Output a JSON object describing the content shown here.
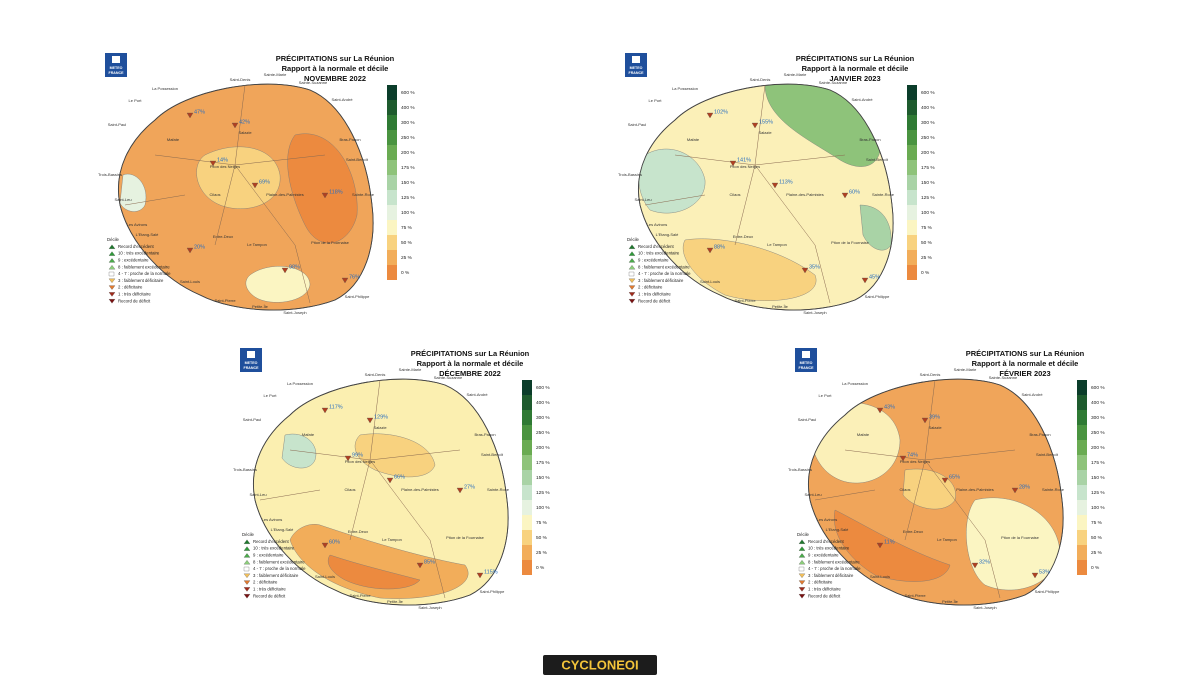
{
  "colorbar": {
    "labels": [
      "600 %",
      "400 %",
      "300 %",
      "250 %",
      "200 %",
      "175 %",
      "150 %",
      "125 %",
      "100 %",
      "75 %",
      "50 %",
      "25 %",
      "0 %"
    ],
    "colors": [
      "#0b3d2a",
      "#1e5b2e",
      "#2f7a34",
      "#4a9440",
      "#6aab52",
      "#8ec37a",
      "#a9d3a6",
      "#c7e4cc",
      "#e6f2e0",
      "#fbf5c2",
      "#f8d27f",
      "#f2ad5a",
      "#ec8a3f"
    ]
  },
  "logo": [
    "METEO",
    "FRANCE"
  ],
  "legend": [
    "Décile",
    "Record d'excédent",
    "10 : très excédentaire",
    "9 : excédentaire",
    "8 : faiblement excédentaire",
    "4 - 7 : proche de la normale",
    "3 : faiblement déficitaire",
    "2 : déficitaire",
    "1 : très déficitaire",
    "Record de déficit"
  ],
  "places": [
    "Saint-Denis",
    "Sainte-Marie",
    "Sainte-Suzanne",
    "Saint-André",
    "Bras-Panon",
    "Saint-Benoît",
    "Sainte-Rose",
    "Saint-Paul",
    "La Possession",
    "Le Port",
    "Trois-Bassins",
    "Saint-Leu",
    "Les Avirons",
    "L'Etang-Salé",
    "Saint-Louis",
    "Saint-Pierre",
    "Petite-Île",
    "Saint-Joseph",
    "Saint-Philippe",
    "Le Tampon",
    "Plaine-des-Palmistes",
    "Salazie",
    "Cilaos",
    "Piton des Neiges",
    "Piton de la Fournaise",
    "Entre-Deux",
    "Mafate"
  ],
  "panels": [
    {
      "title": [
        "PRÉCIPITATIONS sur La Réunion",
        "Rapport à la normale et décile",
        "NOVEMBRE 2022"
      ],
      "base_color": "#f0a55a",
      "patch_colors": [
        "#f8d27f",
        "#fbf5c2",
        "#ec8a3f",
        "#e6f2e0"
      ],
      "stations": [
        "47%",
        "42%",
        "14%",
        "69%",
        "118%",
        "20%",
        "98%",
        "76%"
      ]
    },
    {
      "title": [
        "PRÉCIPITATIONS sur La Réunion",
        "Rapport à la normale et décile",
        "JANVIER 2023"
      ],
      "base_color": "#fbf0b8",
      "patch_colors": [
        "#8ec37a",
        "#c7e4cc",
        "#f8d27f",
        "#a9d3a6"
      ],
      "stations": [
        "102%",
        "155%",
        "141%",
        "113%",
        "60%",
        "88%",
        "35%",
        "45%"
      ]
    },
    {
      "title": [
        "PRÉCIPITATIONS sur La Réunion",
        "Rapport à la normale et décile",
        "DÉCEMBRE 2022"
      ],
      "base_color": "#fbefb0",
      "patch_colors": [
        "#f2ad5a",
        "#c7e4cc",
        "#f8d27f",
        "#ec8a3f"
      ],
      "stations": [
        "117%",
        "129%",
        "99%",
        "66%",
        "27%",
        "60%",
        "85%",
        "115%"
      ]
    },
    {
      "title": [
        "PRÉCIPITATIONS sur La Réunion",
        "Rapport à la normale et décile",
        "FÉVRIER 2023"
      ],
      "base_color": "#f0a55a",
      "patch_colors": [
        "#fbf0b8",
        "#fbf5c2",
        "#ec8a3f",
        "#f8d27f"
      ],
      "stations": [
        "43%",
        "39%",
        "74%",
        "65%",
        "28%",
        "11%",
        "32%",
        "53%"
      ]
    }
  ],
  "footer": "CYCLONEOI"
}
